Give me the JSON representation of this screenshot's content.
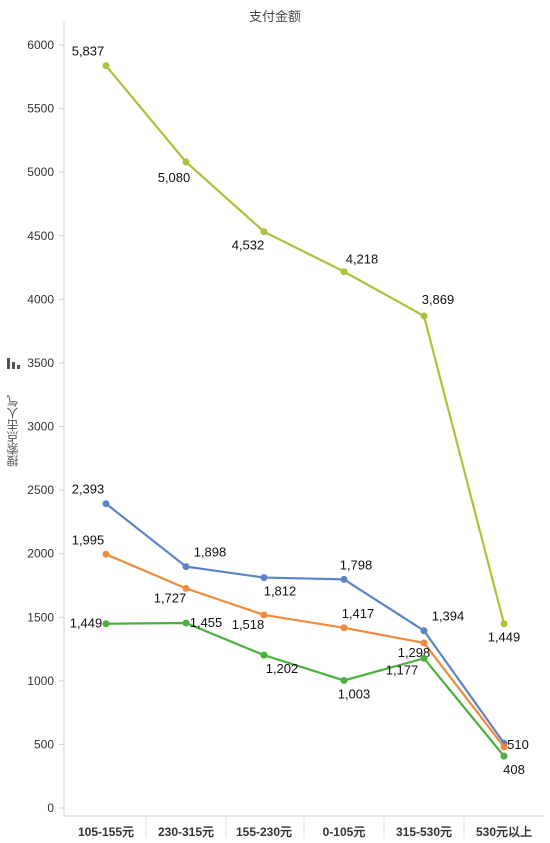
{
  "chart_data": {
    "type": "line",
    "title": "支付金额",
    "ylabel": "搜索点击人气",
    "xlabel": "",
    "categories": [
      "105-155元",
      "230-315元",
      "155-230元",
      "0-105元",
      "315-530元",
      "530元以上"
    ],
    "y_ticks": [
      0,
      500,
      1000,
      1500,
      2000,
      2500,
      3000,
      3500,
      4000,
      4500,
      5000,
      5500,
      6000
    ],
    "ylim": [
      0,
      6200
    ],
    "grid": false,
    "series": [
      {
        "color": "#a9c43a",
        "values": [
          5837,
          5080,
          4532,
          4218,
          3869,
          1449
        ],
        "labels": [
          "5,837",
          "5,080",
          "4,532",
          "4,218",
          "3,869",
          "1,449"
        ]
      },
      {
        "color": "#5b84c8",
        "values": [
          2393,
          1898,
          1812,
          1798,
          1394,
          510
        ],
        "labels": [
          "2,393",
          "1,898",
          "1,812",
          "1,798",
          "1,394",
          "510"
        ]
      },
      {
        "color": "#f08a3c",
        "values": [
          1995,
          1727,
          1518,
          1417,
          1298,
          480
        ],
        "labels": [
          "1,995",
          "1,727",
          "1,518",
          "1,417",
          "1,298",
          ""
        ]
      },
      {
        "color": "#4caf3f",
        "values": [
          1449,
          1455,
          1202,
          1003,
          1177,
          408
        ],
        "labels": [
          "1,449",
          "1,455",
          "1,202",
          "1,003",
          "1,177",
          "408"
        ]
      }
    ]
  }
}
